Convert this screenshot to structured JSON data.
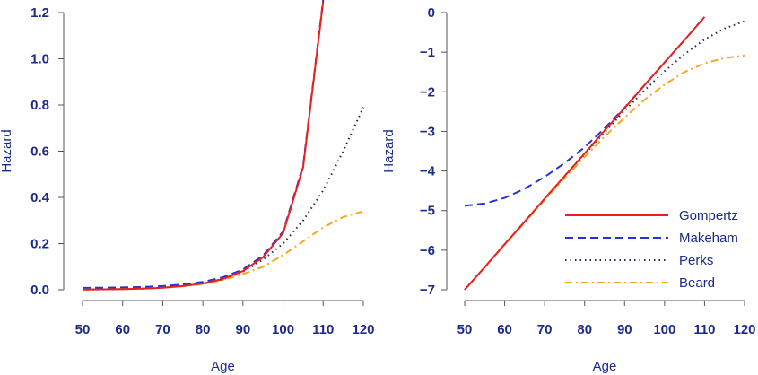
{
  "chart_data": [
    {
      "type": "line",
      "panel": "left",
      "title": "",
      "xlabel": "Age",
      "ylabel": "Hazard",
      "xlim": [
        50,
        120
      ],
      "ylim": [
        0,
        1.2
      ],
      "x_ticks": [
        50,
        60,
        70,
        80,
        90,
        100,
        110,
        120
      ],
      "y_ticks": [
        0.0,
        0.2,
        0.4,
        0.6,
        0.8,
        1.0,
        1.2
      ],
      "x_tick_labels": [
        "50",
        "60",
        "70",
        "80",
        "90",
        "100",
        "110",
        "120"
      ],
      "y_tick_labels": [
        "0.0",
        "0.2",
        "0.4",
        "0.6",
        "0.8",
        "1.0",
        "1.2"
      ],
      "grid": false,
      "x": [
        50,
        55,
        60,
        65,
        70,
        75,
        80,
        85,
        90,
        95,
        100,
        105,
        110,
        115,
        120
      ],
      "series": [
        {
          "name": "Gompertz",
          "color": "#e8211c",
          "dash": "solid",
          "values": [
            0.001,
            0.002,
            0.003,
            0.005,
            0.009,
            0.016,
            0.027,
            0.047,
            0.081,
            0.141,
            0.245,
            0.53,
            1.25,
            null,
            null
          ]
        },
        {
          "name": "Makeham",
          "color": "#2233d8",
          "dash": "dashed",
          "values": [
            0.008,
            0.009,
            0.01,
            0.012,
            0.016,
            0.023,
            0.034,
            0.054,
            0.088,
            0.148,
            0.252,
            0.537,
            1.257,
            null,
            null
          ]
        },
        {
          "name": "Perks",
          "color": "#1f2a5e",
          "dash": "dotted",
          "values": [
            0.001,
            0.002,
            0.003,
            0.005,
            0.009,
            0.016,
            0.026,
            0.045,
            0.078,
            0.13,
            0.2,
            0.3,
            0.43,
            0.6,
            0.79
          ]
        },
        {
          "name": "Beard",
          "color": "#f5a623",
          "dash": "dashdot",
          "values": [
            0.001,
            0.002,
            0.003,
            0.005,
            0.009,
            0.015,
            0.025,
            0.042,
            0.068,
            0.1,
            0.15,
            0.21,
            0.27,
            0.315,
            0.34
          ]
        }
      ]
    },
    {
      "type": "line",
      "panel": "right",
      "title": "",
      "xlabel": "Age",
      "ylabel": "Hazard",
      "xlim": [
        50,
        120
      ],
      "ylim": [
        -7,
        0
      ],
      "x_ticks": [
        50,
        60,
        70,
        80,
        90,
        100,
        110,
        120
      ],
      "y_ticks": [
        0,
        -1,
        -2,
        -3,
        -4,
        -5,
        -6,
        -7
      ],
      "x_tick_labels": [
        "50",
        "60",
        "70",
        "80",
        "90",
        "100",
        "110",
        "120"
      ],
      "y_tick_labels": [
        "0",
        "−1",
        "−2",
        "−3",
        "−4",
        "−5",
        "−6",
        "−7"
      ],
      "grid": false,
      "legend_position": "bottom-right",
      "x": [
        50,
        55,
        60,
        65,
        70,
        75,
        80,
        85,
        90,
        95,
        100,
        105,
        110,
        115,
        120
      ],
      "series": [
        {
          "name": "Gompertz",
          "color": "#e8211c",
          "dash": "solid",
          "values": [
            -7.0,
            -6.43,
            -5.85,
            -5.28,
            -4.7,
            -4.13,
            -3.56,
            -2.98,
            -2.41,
            -1.83,
            -1.26,
            -0.69,
            -0.11,
            null,
            null
          ]
        },
        {
          "name": "Makeham",
          "color": "#2233d8",
          "dash": "dashed",
          "values": [
            -4.88,
            -4.82,
            -4.68,
            -4.45,
            -4.15,
            -3.8,
            -3.4,
            -2.92,
            -2.4,
            -1.83,
            -1.26,
            -0.69,
            -0.11,
            null,
            null
          ]
        },
        {
          "name": "Perks",
          "color": "#1f2a5e",
          "dash": "dotted",
          "values": [
            -7.0,
            -6.43,
            -5.85,
            -5.28,
            -4.7,
            -4.13,
            -3.58,
            -3.02,
            -2.48,
            -1.96,
            -1.48,
            -1.05,
            -0.68,
            -0.4,
            -0.22
          ]
        },
        {
          "name": "Beard",
          "color": "#f5a623",
          "dash": "dashdot",
          "values": [
            -7.0,
            -6.43,
            -5.86,
            -5.3,
            -4.73,
            -4.18,
            -3.65,
            -3.13,
            -2.65,
            -2.2,
            -1.82,
            -1.5,
            -1.28,
            -1.15,
            -1.08
          ]
        }
      ]
    }
  ]
}
